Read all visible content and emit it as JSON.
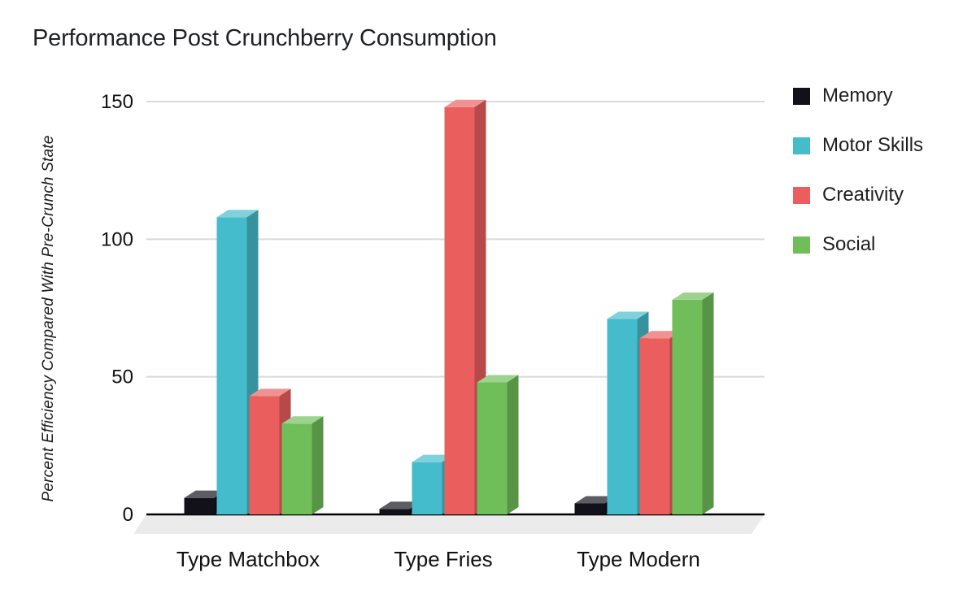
{
  "chart_data": {
    "type": "bar",
    "style": "3d-column",
    "title": "Performance Post Crunchberry Consumption",
    "ylabel": "Percent Efficiency Compared With Pre-Crunch State",
    "xlabel": "",
    "categories": [
      "Type Matchbox",
      "Type Fries",
      "Type Modern"
    ],
    "series": [
      {
        "name": "Memory",
        "color": "#121019",
        "values": [
          6,
          2,
          4
        ]
      },
      {
        "name": "Motor Skills",
        "color": "#45bccb",
        "values": [
          108,
          19,
          71
        ]
      },
      {
        "name": "Creativity",
        "color": "#ea5e5e",
        "values": [
          43,
          148,
          64
        ]
      },
      {
        "name": "Social",
        "color": "#6fbe5a",
        "values": [
          33,
          48,
          78
        ]
      }
    ],
    "ylim": [
      0,
      150
    ],
    "yticks": [
      0,
      50,
      100,
      150
    ],
    "grid": true,
    "legend_position": "right",
    "colors": {
      "gridline": "#d9d9d9",
      "axis": "#000000",
      "floor": "#ebebeb",
      "text": "#111111"
    }
  }
}
